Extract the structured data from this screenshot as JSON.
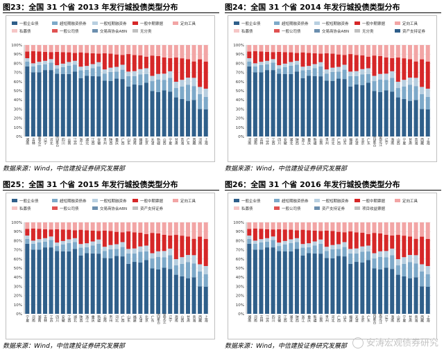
{
  "panels": [
    {
      "title": "图23：全国 31 个省 2013 年发行城投债类型分布",
      "source": "数据来源：Wind，中信建投证券研究发展部",
      "legend": [
        "一般企业债",
        "超短期融资债券",
        "一般短期融资券",
        "一般中期票据",
        "定向工具",
        "私募债",
        "一般公司债",
        "交易商协会ABN",
        "无分类"
      ],
      "provinces": [
        "湖南",
        "吉林",
        "黑龙江",
        "辽宁",
        "河北",
        "内蒙古",
        "四川",
        "云南",
        "江苏",
        "浙江",
        "湖北",
        "江西",
        "安徽",
        "贵州",
        "陕西",
        "重庆",
        "广西",
        "山东",
        "海南",
        "福建",
        "北京",
        "天津",
        "新疆",
        "山西",
        "宁夏",
        "甘肃",
        "青海",
        "广东",
        "西藏",
        "河南",
        "上海"
      ]
    },
    {
      "title": "图24：全国 31 个省 2014 年发行城投债类型分布",
      "source": "数据来源：Wind，中信建投证券研究发展部",
      "legend": [
        "一般企业债",
        "超短期融资债券",
        "一般短期融资券",
        "一般中期票据",
        "定向工具",
        "私募债",
        "一般公司债",
        "交易商协会ABN",
        "无分类",
        "资产支持证券"
      ],
      "provinces": [
        "河南",
        "湖南",
        "吉林",
        "江苏",
        "江西",
        "四川",
        "安徽",
        "湖北",
        "陕西",
        "浙江",
        "重庆",
        "新疆",
        "云南",
        "贵州",
        "河北",
        "广西",
        "山东",
        "福建",
        "天津",
        "北京",
        "广东",
        "内蒙古",
        "黑龙江",
        "辽宁",
        "海南",
        "山西",
        "宁夏",
        "甘肃",
        "青海",
        "西藏",
        "上海"
      ]
    },
    {
      "title": "图25：全国 31 个省 2015 年发行城投债类型分布",
      "source": "数据来源：Wind，中信建投证券研究发展部",
      "legend": [
        "一般企业债",
        "超短期融资债券",
        "一般短期融资券",
        "一般中期票据",
        "定向工具",
        "私募债",
        "一般公司债",
        "交易商协会ABN",
        "资产支持证券"
      ],
      "provinces": [
        "宁夏",
        "河南",
        "湖南",
        "吉林",
        "江苏",
        "四川",
        "安徽",
        "江西",
        "湖北",
        "陕西",
        "浙江",
        "重庆",
        "新疆",
        "云南",
        "贵州",
        "河北",
        "广西",
        "山东",
        "福建",
        "天津",
        "北京",
        "广东",
        "内蒙古",
        "黑龙江",
        "辽宁",
        "海南",
        "山西",
        "甘肃",
        "青海",
        "西藏",
        "上海"
      ]
    },
    {
      "title": "图26：全国 31 个省 2016 年发行城投债类型分布",
      "source": "数据来源：Wind，中信建投证券研究发展部",
      "legend": [
        "一般企业债",
        "超短期融资债券",
        "一般短期融资券",
        "一般中期票据",
        "定向工具",
        "私募债",
        "一般公司债",
        "资产支持证券",
        "项目收益票据"
      ],
      "provinces": [
        "湖南",
        "河南",
        "吉林",
        "江苏",
        "四川",
        "安徽",
        "江西",
        "湖北",
        "陕西",
        "浙江",
        "重庆",
        "新疆",
        "云南",
        "贵州",
        "河北",
        "广西",
        "山东",
        "福建",
        "天津",
        "北京",
        "广东",
        "内蒙古",
        "黑龙江",
        "辽宁",
        "海南",
        "山西",
        "宁夏",
        "甘肃",
        "青海",
        "西藏",
        "上海"
      ]
    }
  ],
  "axis": {
    "ticks": [
      "0%",
      "10%",
      "20%",
      "30%",
      "40%",
      "50%",
      "60%",
      "70%",
      "80%",
      "90%",
      "100%"
    ]
  },
  "colors": [
    "#2f5f8a",
    "#7da9c9",
    "#b8cfe0",
    "#d62728",
    "#f2a5a5",
    "#f5c6c6",
    "#e05252",
    "#6b8fae",
    "#c0c0c0"
  ],
  "watermark": "安涛宏观债券研究"
}
